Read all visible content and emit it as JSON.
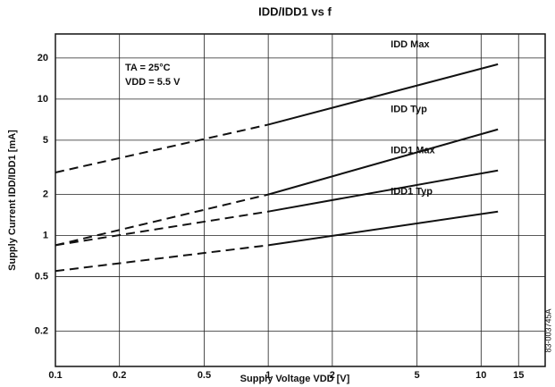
{
  "chart_data": {
    "type": "line",
    "title": "IDD/IDD1 vs f",
    "x_label": "Supply Voltage VDD [V]",
    "y_label": "Supply Current IDD/IDD1 [mA]",
    "annotations": [
      "TA = 25°C",
      "VDD = 5.5 V"
    ],
    "side_code": "83-003745A",
    "log_x": true,
    "log_y": true,
    "grid": true,
    "x": [
      0.1,
      1,
      12
    ],
    "series": [
      {
        "name": "IDD Max",
        "color": "#111",
        "values": [
          2.9,
          6.5,
          18
        ]
      },
      {
        "name": "IDD Typ",
        "color": "#111",
        "values": [
          0.85,
          2.0,
          6
        ]
      },
      {
        "name": "IDD1 Max",
        "color": "#111",
        "values": [
          0.85,
          1.5,
          3
        ]
      },
      {
        "name": "IDD1 Typ",
        "color": "#111",
        "values": [
          0.55,
          0.85,
          1.5
        ]
      }
    ],
    "xlim": [
      0.1,
      20
    ],
    "xticks": [
      0.1,
      0.2,
      0.5,
      1,
      2,
      5,
      10,
      15
    ],
    "ylim": [
      0.11,
      30
    ],
    "yticks": [
      0.2,
      0.5,
      1,
      2,
      5,
      10,
      20
    ]
  }
}
